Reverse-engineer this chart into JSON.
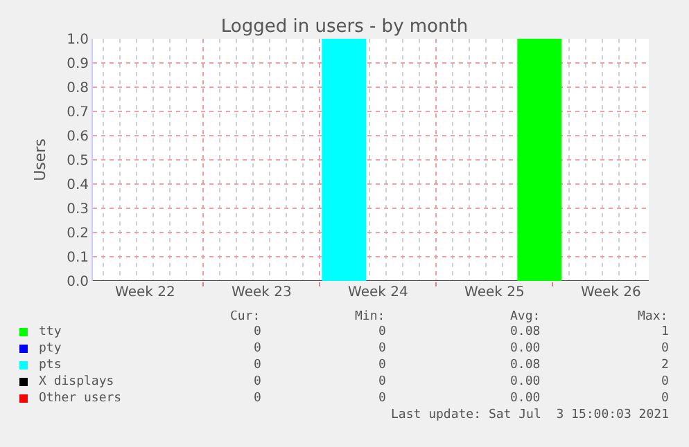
{
  "chart_data": {
    "type": "area",
    "title": "Logged in users - by month",
    "ylabel": "Users",
    "xlim": [
      "2021-05-31T08:40",
      "2021-07-03T18:40"
    ],
    "xticks": [
      {
        "value": "2021-06-03T12:00",
        "label": "Week 22"
      },
      {
        "value": "2021-06-10T12:00",
        "label": "Week 23"
      },
      {
        "value": "2021-06-17T12:00",
        "label": "Week 24"
      },
      {
        "value": "2021-06-24T12:00",
        "label": "Week 25"
      },
      {
        "value": "2021-07-01T12:00",
        "label": "Week 26"
      }
    ],
    "ylim": [
      0,
      1
    ],
    "yticks": [
      {
        "value": 0,
        "label": "0.0"
      },
      0.1,
      0.2,
      0.3,
      0.4,
      0.5,
      0.6,
      0.7,
      0.8,
      0.9,
      {
        "value": 1,
        "label": "1.0"
      }
    ],
    "grid": true,
    "legend": "bottom left",
    "series": [
      {
        "name": "tty",
        "color": "#00ff00",
        "x": [
          "2021-06-25T21:00",
          "2021-06-28T13:00"
        ],
        "values": [
          1,
          1
        ]
      },
      {
        "name": "pty",
        "type": "line",
        "color": "#0000ff"
      },
      {
        "name": "pts",
        "color": "#00ffff",
        "x": [
          "2021-06-14T03:00",
          "2021-06-16T19:00"
        ],
        "values": [
          1,
          1
        ]
      },
      {
        "name": "X displays",
        "type": "line",
        "color": "#000000"
      },
      {
        "name": "Other users",
        "type": "line",
        "color": "#ff0000",
        "x": [
          "2021-05-31T08:40",
          "2021-07-03T18:40"
        ],
        "values": [
          0,
          0
        ]
      }
    ],
    "annotations": [
      "Cur:",
      "Min:",
      "Avg:",
      "Max:",
      "0",
      "0",
      "0.08",
      "1",
      "0",
      "0",
      "0.00",
      "0",
      "0",
      "0",
      "0.08",
      "2",
      "0",
      "0",
      "0.00",
      "0",
      "0",
      "0",
      "0.00",
      "0",
      "Last update: Sat Jul  3 15:00:03 2021"
    ]
  }
}
